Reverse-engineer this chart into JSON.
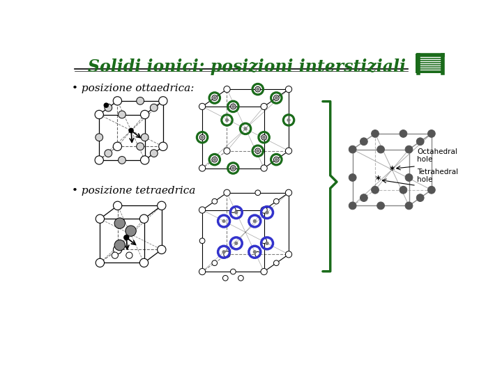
{
  "title": "Solidi ionici: posizioni interstiziali",
  "title_color": "#1a6b1a",
  "background_color": "#ffffff",
  "bullet1": "posizione ottaedrica:",
  "bullet2": "posizione tetraedrica",
  "label_octahedral": "Octahedral\nhole",
  "label_tetrahedral": "Tetrahedral\nhole",
  "green_color": "#1a6b1a",
  "blue_color": "#3333cc",
  "gray_color": "#888888",
  "dark_gray": "#555555"
}
